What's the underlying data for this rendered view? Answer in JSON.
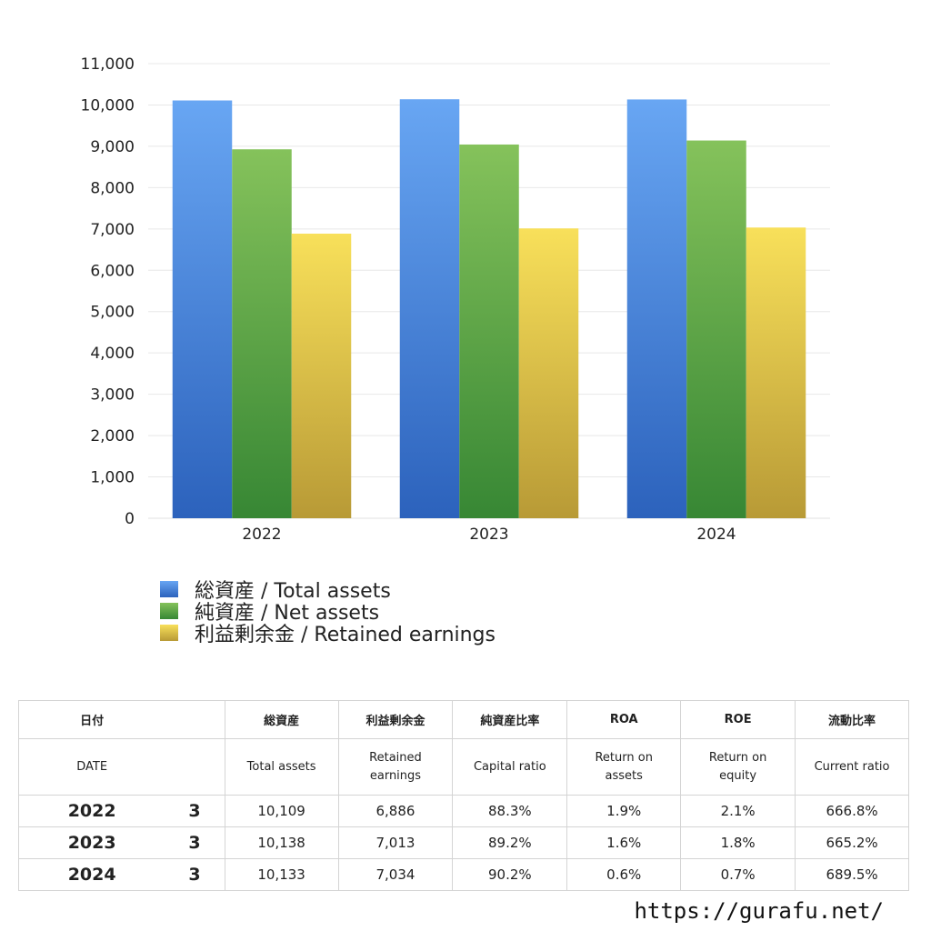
{
  "chart_data": {
    "type": "bar",
    "categories": [
      "2022",
      "2023",
      "2024"
    ],
    "series": [
      {
        "name": "総資産 / Total assets",
        "values": [
          10109,
          10138,
          10133
        ]
      },
      {
        "name": "純資産 / Net assets",
        "values": [
          8927,
          9043,
          9140
        ]
      },
      {
        "name": "利益剰余金 / Retained earnings",
        "values": [
          6886,
          7013,
          7034
        ]
      }
    ],
    "ylim": [
      0,
      11000
    ],
    "yticks": [
      "0",
      "1,000",
      "2,000",
      "3,000",
      "4,000",
      "5,000",
      "6,000",
      "7,000",
      "8,000",
      "9,000",
      "10,000",
      "11,000"
    ],
    "grid": true,
    "legend_position": "bottom-left",
    "colors": [
      "#4a86e0",
      "#4fa33f",
      "#e3c84a"
    ]
  },
  "table": {
    "headers_jp": [
      "日付",
      "",
      "総資産",
      "利益剰余金",
      "純資産比率",
      "ROA",
      "ROE",
      "流動比率"
    ],
    "headers_en": [
      "DATE",
      "",
      "Total assets",
      "Retained earnings",
      "Capital ratio",
      "Return on assets",
      "Return on equity",
      "Current ratio"
    ],
    "rows": [
      {
        "year": "2022",
        "month": "3",
        "total_assets": "10,109",
        "retained": "6,886",
        "capital_ratio": "88.3%",
        "roa": "1.9%",
        "roe": "2.1%",
        "current_ratio": "666.8%"
      },
      {
        "year": "2023",
        "month": "3",
        "total_assets": "10,138",
        "retained": "7,013",
        "capital_ratio": "89.2%",
        "roa": "1.6%",
        "roe": "1.8%",
        "current_ratio": "665.2%"
      },
      {
        "year": "2024",
        "month": "3",
        "total_assets": "10,133",
        "retained": "7,034",
        "capital_ratio": "90.2%",
        "roa": "0.6%",
        "roe": "0.7%",
        "current_ratio": "689.5%"
      }
    ]
  },
  "footer": {
    "url": "https://gurafu.net/"
  }
}
